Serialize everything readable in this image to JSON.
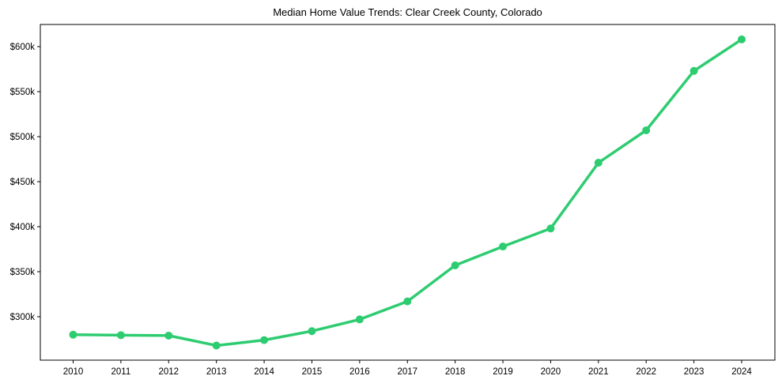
{
  "chart_data": {
    "type": "line",
    "title": "Median Home Value Trends: Clear Creek County, Colorado",
    "xlabel": "",
    "ylabel": "",
    "x": [
      2010,
      2011,
      2012,
      2013,
      2014,
      2015,
      2016,
      2017,
      2018,
      2019,
      2020,
      2021,
      2022,
      2023,
      2024
    ],
    "series": [
      {
        "name": "Median Home Value",
        "color": "#2ecc71",
        "values": [
          280000,
          279500,
          279000,
          268000,
          274000,
          284000,
          297000,
          317000,
          357000,
          378000,
          398000,
          471000,
          507000,
          573000,
          608000
        ]
      }
    ],
    "yticks": [
      300000,
      350000,
      400000,
      450000,
      500000,
      550000,
      600000
    ],
    "ytick_labels": [
      "$300k",
      "$350k",
      "$400k",
      "$450k",
      "$500k",
      "$550k",
      "$600k"
    ],
    "xtick_labels": [
      "2010",
      "2011",
      "2012",
      "2013",
      "2014",
      "2015",
      "2016",
      "2017",
      "2018",
      "2019",
      "2020",
      "2021",
      "2022",
      "2023",
      "2024"
    ],
    "ylim": [
      254000,
      625000
    ],
    "grid": false,
    "legend": false
  }
}
